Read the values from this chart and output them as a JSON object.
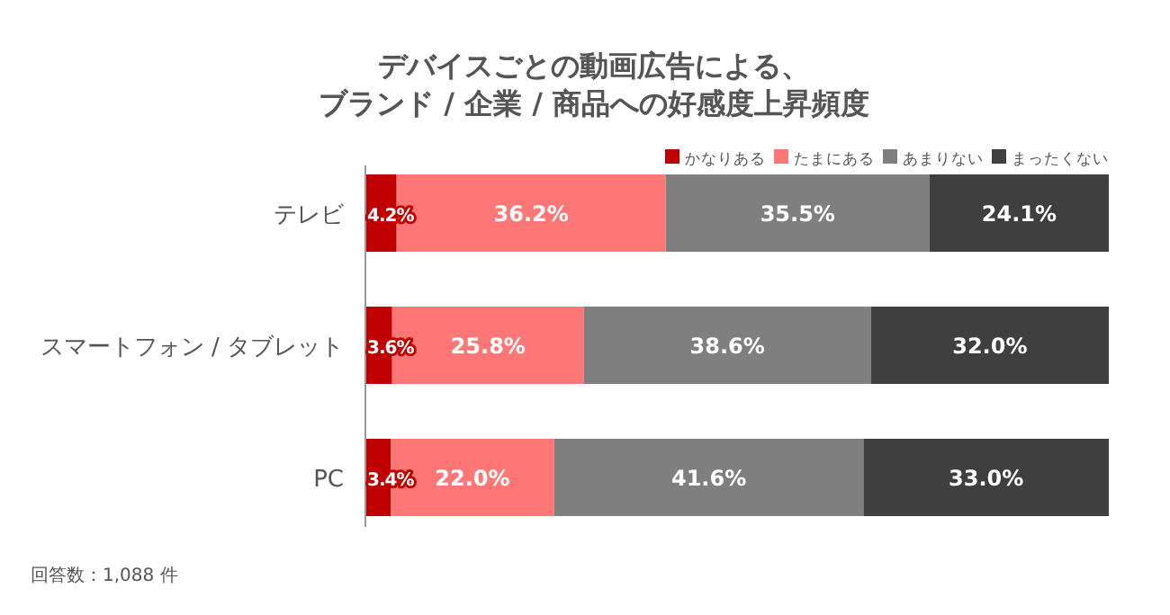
{
  "chart_data": {
    "type": "bar",
    "orientation": "horizontal",
    "stacked": true,
    "title": "デバイスごとの動画広告による、ブランド / 企業 / 商品への好感度上昇頻度",
    "categories": [
      "テレビ",
      "スマートフォン / タブレット",
      "PC"
    ],
    "xlim": [
      0,
      100
    ],
    "tick_labels": "y",
    "legend": "top right",
    "series": [
      {
        "name": "かなりある",
        "color": "#c00000",
        "values": [
          4.2,
          3.6,
          3.4
        ],
        "value_labels": [
          "4.2%",
          "3.6%",
          "3.4%"
        ]
      },
      {
        "name": "たまにある",
        "color": "#ff7676",
        "values": [
          36.2,
          25.8,
          22.0
        ],
        "value_labels": [
          "36.2%",
          "25.8%",
          "22.0%"
        ]
      },
      {
        "name": "あまりない",
        "color": "#7f7f7f",
        "values": [
          35.5,
          38.6,
          41.6
        ],
        "value_labels": [
          "35.5%",
          "38.6%",
          "41.6%"
        ]
      },
      {
        "name": "まったくない",
        "color": "#3f3f3f",
        "values": [
          24.1,
          32.0,
          33.0
        ],
        "value_labels": [
          "24.1%",
          "32.0%",
          "33.0%"
        ]
      }
    ],
    "annotations": [
      "回答数：1,088 件"
    ]
  }
}
